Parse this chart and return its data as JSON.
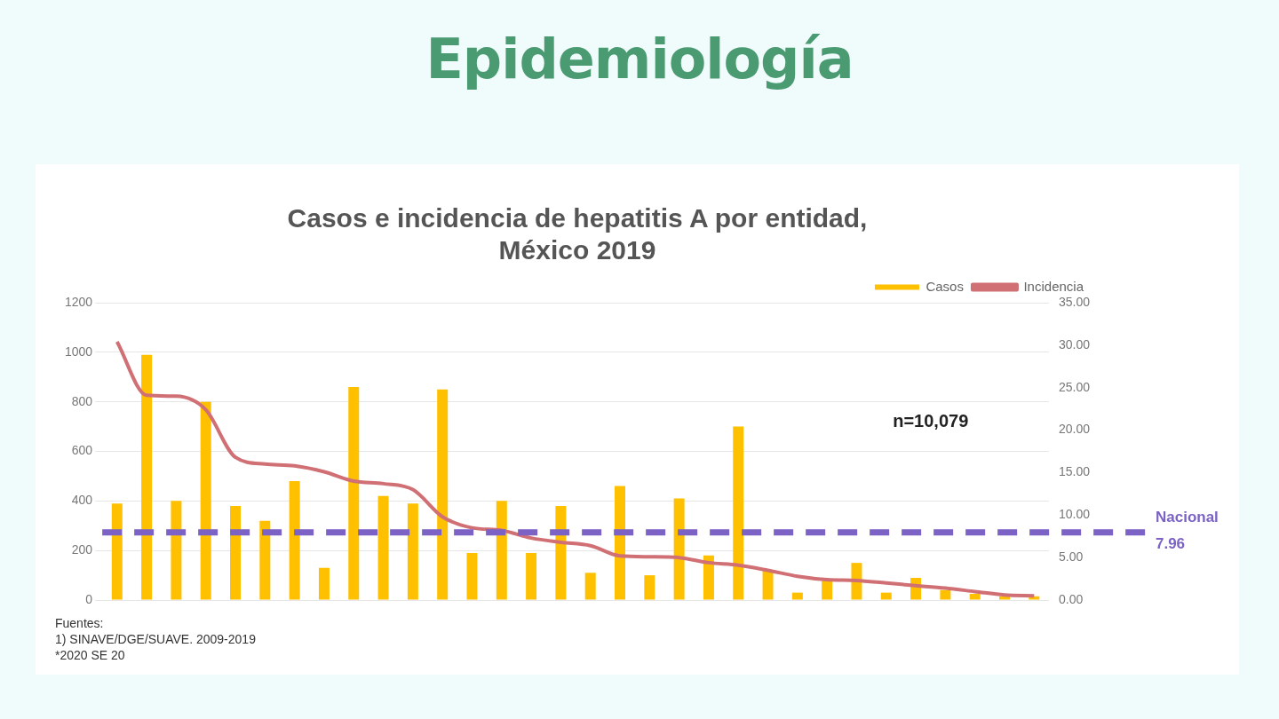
{
  "chart_data": {
    "type": "bar",
    "title": "Epidemiología",
    "subtitle": "Casos e incidencia de hepatitis A por entidad, México 2019",
    "categories": [
      null,
      null,
      null,
      null,
      null,
      null,
      null,
      null,
      null,
      null,
      null,
      null,
      null,
      null,
      null,
      null,
      null,
      null,
      null,
      null,
      null,
      null,
      null,
      null,
      null,
      null,
      null,
      null,
      null,
      null,
      null,
      null
    ],
    "series": [
      {
        "name": "Casos",
        "color": "#ffc000",
        "values": [
          390,
          990,
          400,
          800,
          380,
          320,
          480,
          130,
          860,
          420,
          390,
          850,
          190,
          400,
          190,
          380,
          110,
          460,
          100,
          410,
          180,
          700,
          120,
          30,
          80,
          150,
          30,
          90,
          40,
          25,
          15,
          15
        ]
      },
      {
        "name": "Incidencia",
        "type": "line",
        "axis": "y2",
        "color": "#d07075",
        "values": [
          30.4,
          24.1,
          24.0,
          22.4,
          16.8,
          16.0,
          15.8,
          15.1,
          14.0,
          13.7,
          13.0,
          9.8,
          8.5,
          8.2,
          7.3,
          6.8,
          6.4,
          5.2,
          5.1,
          5.0,
          4.4,
          4.1,
          3.5,
          2.8,
          2.4,
          2.3,
          2.0,
          1.7,
          1.4,
          1.0,
          0.6,
          0.5
        ]
      }
    ],
    "ylim": [
      0,
      1200
    ],
    "yticks": [
      0,
      200,
      400,
      600,
      800,
      1000,
      1200
    ],
    "y2lim": [
      0,
      35
    ],
    "y2ticks": [
      {
        "value": 0,
        "label": "0.00"
      },
      {
        "value": 5,
        "label": "5.00"
      },
      {
        "value": 10,
        "label": "10.00"
      },
      {
        "value": 15,
        "label": "15.00"
      },
      {
        "value": 20,
        "label": "20.00"
      },
      {
        "value": 25,
        "label": "25.00"
      },
      {
        "value": 30,
        "label": "30.00"
      },
      {
        "value": 35,
        "label": "35.00"
      }
    ],
    "ref_lines": [
      {
        "axis": "y2",
        "value": 7.96,
        "label": "Nacional 7.96",
        "color": "#7b62c4",
        "line_style": "dashed"
      }
    ],
    "annotations": [
      "n=10,079",
      "Fuentes:",
      "1) SINAVE/DGE/SUAVE. 2009-2019",
      "*2020 SE 20"
    ],
    "grid": "y",
    "legend": "top right",
    "marker": "none"
  }
}
